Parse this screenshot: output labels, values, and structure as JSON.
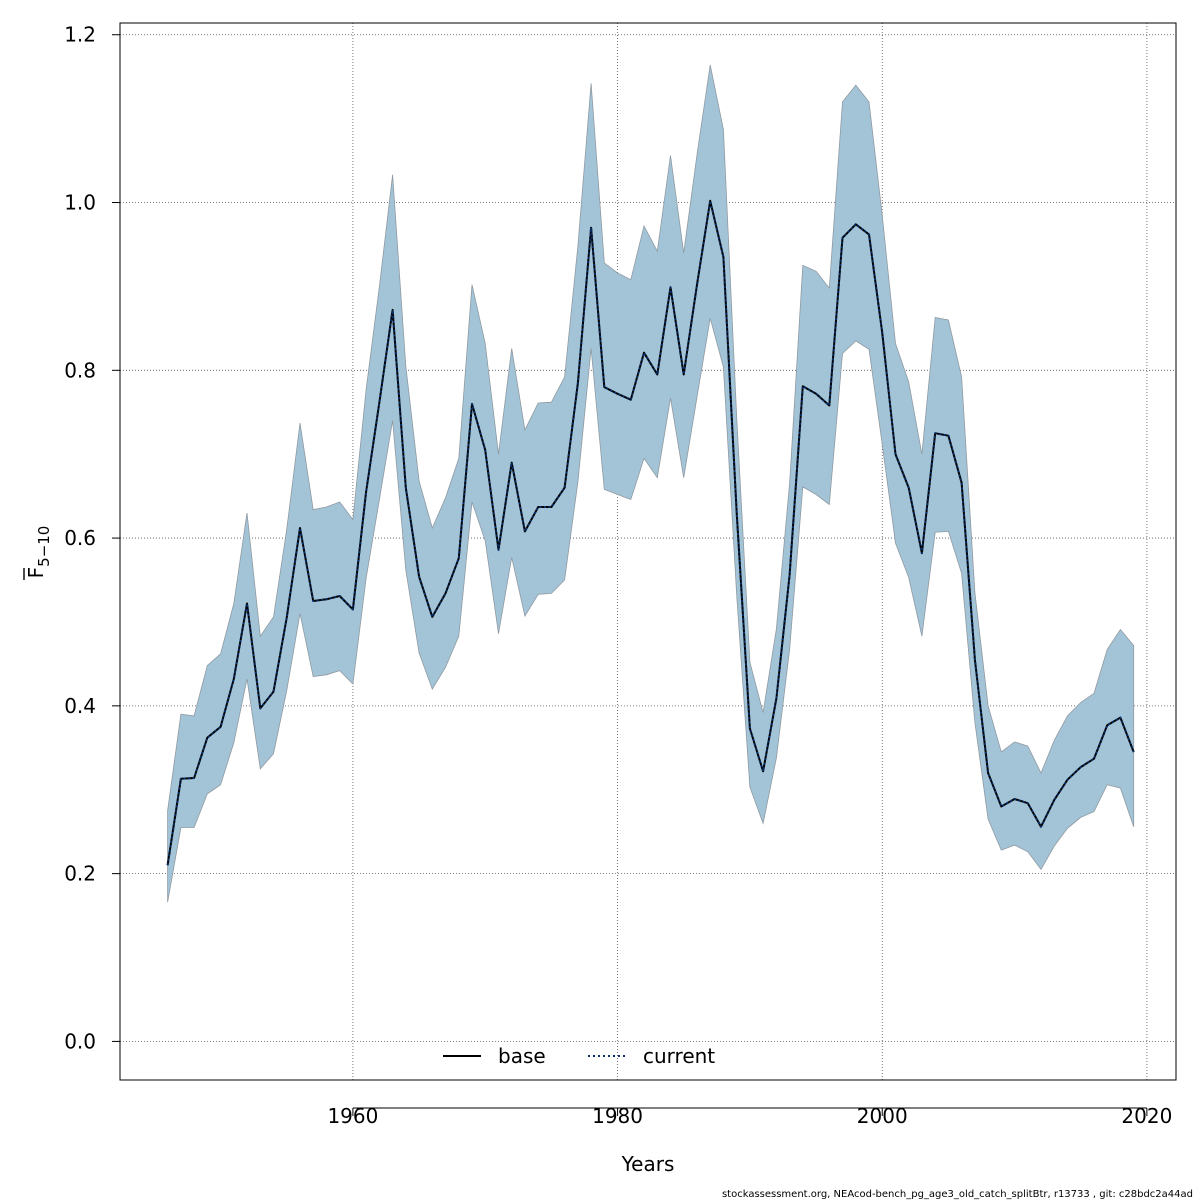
{
  "chart_data": {
    "type": "line",
    "xlabel": "Years",
    "ylabel": "F",
    "ylabel_subscript": "5−10",
    "xlim": [
      1942.4,
      2022.2
    ],
    "ylim": [
      -0.046,
      1.214
    ],
    "x_ticks": [
      1960,
      1980,
      2000,
      2020
    ],
    "y_ticks": [
      0.0,
      0.2,
      0.4,
      0.6,
      0.8,
      1.0,
      1.2
    ],
    "y_tick_labels": [
      "0.0",
      "0.2",
      "0.4",
      "0.6",
      "0.8",
      "1.0",
      "1.2"
    ],
    "grid": true,
    "legend_position": "bottom",
    "band_color": "#a3c4d6",
    "band_edge_color": "#8f9aa3",
    "x": [
      1946,
      1947,
      1948,
      1949,
      1950,
      1951,
      1952,
      1953,
      1954,
      1955,
      1956,
      1957,
      1958,
      1959,
      1960,
      1961,
      1962,
      1963,
      1964,
      1965,
      1966,
      1967,
      1968,
      1969,
      1970,
      1971,
      1972,
      1973,
      1974,
      1975,
      1976,
      1977,
      1978,
      1979,
      1980,
      1981,
      1982,
      1983,
      1984,
      1985,
      1986,
      1987,
      1988,
      1989,
      1990,
      1991,
      1992,
      1993,
      1994,
      1995,
      1996,
      1997,
      1998,
      1999,
      2000,
      2001,
      2002,
      2003,
      2004,
      2005,
      2006,
      2007,
      2008,
      2009,
      2010,
      2011,
      2012,
      2013,
      2014,
      2015,
      2016,
      2017,
      2018,
      2019
    ],
    "series": [
      {
        "name": "base",
        "color": "#000000",
        "dash": "solid",
        "values": [
          0.21,
          0.313,
          0.314,
          0.362,
          0.375,
          0.432,
          0.522,
          0.397,
          0.417,
          0.505,
          0.612,
          0.525,
          0.527,
          0.531,
          0.515,
          0.655,
          0.762,
          0.872,
          0.66,
          0.554,
          0.506,
          0.534,
          0.576,
          0.76,
          0.705,
          0.586,
          0.69,
          0.608,
          0.637,
          0.637,
          0.66,
          0.785,
          0.97,
          0.78,
          0.772,
          0.765,
          0.821,
          0.795,
          0.899,
          0.795,
          0.902,
          1.002,
          0.935,
          0.63,
          0.373,
          0.322,
          0.409,
          0.556,
          0.781,
          0.772,
          0.758,
          0.958,
          0.974,
          0.962,
          0.845,
          0.7,
          0.66,
          0.582,
          0.725,
          0.722,
          0.666,
          0.455,
          0.32,
          0.28,
          0.289,
          0.284,
          0.256,
          0.288,
          0.312,
          0.327,
          0.337,
          0.377,
          0.386,
          0.345
        ]
      },
      {
        "name": "current",
        "color": "#08306b",
        "dash": "dotted",
        "values": [
          0.21,
          0.313,
          0.314,
          0.362,
          0.375,
          0.432,
          0.522,
          0.397,
          0.417,
          0.505,
          0.612,
          0.525,
          0.527,
          0.531,
          0.515,
          0.655,
          0.762,
          0.872,
          0.66,
          0.554,
          0.506,
          0.534,
          0.576,
          0.76,
          0.705,
          0.586,
          0.69,
          0.608,
          0.637,
          0.637,
          0.66,
          0.785,
          0.97,
          0.78,
          0.772,
          0.765,
          0.821,
          0.795,
          0.899,
          0.795,
          0.902,
          1.002,
          0.935,
          0.63,
          0.373,
          0.322,
          0.409,
          0.556,
          0.781,
          0.772,
          0.758,
          0.958,
          0.974,
          0.962,
          0.845,
          0.7,
          0.66,
          0.582,
          0.725,
          0.722,
          0.666,
          0.455,
          0.32,
          0.28,
          0.289,
          0.284,
          0.256,
          0.288,
          0.312,
          0.327,
          0.337,
          0.377,
          0.386,
          0.345
        ]
      }
    ],
    "band_upper": [
      0.275,
      0.39,
      0.388,
      0.448,
      0.462,
      0.522,
      0.63,
      0.483,
      0.506,
      0.61,
      0.737,
      0.634,
      0.637,
      0.643,
      0.622,
      0.777,
      0.9,
      1.033,
      0.805,
      0.668,
      0.612,
      0.648,
      0.695,
      0.902,
      0.832,
      0.7,
      0.826,
      0.729,
      0.761,
      0.762,
      0.792,
      0.948,
      1.142,
      0.928,
      0.916,
      0.908,
      0.972,
      0.942,
      1.056,
      0.94,
      1.057,
      1.164,
      1.087,
      0.744,
      0.452,
      0.392,
      0.492,
      0.665,
      0.925,
      0.918,
      0.898,
      1.12,
      1.14,
      1.12,
      0.985,
      0.832,
      0.786,
      0.7,
      0.863,
      0.86,
      0.792,
      0.535,
      0.4,
      0.345,
      0.357,
      0.352,
      0.32,
      0.359,
      0.388,
      0.404,
      0.415,
      0.467,
      0.491,
      0.472
    ],
    "band_lower": [
      0.166,
      0.255,
      0.255,
      0.295,
      0.306,
      0.356,
      0.432,
      0.325,
      0.343,
      0.418,
      0.51,
      0.435,
      0.437,
      0.442,
      0.426,
      0.552,
      0.646,
      0.74,
      0.562,
      0.463,
      0.42,
      0.446,
      0.483,
      0.643,
      0.597,
      0.486,
      0.577,
      0.507,
      0.533,
      0.534,
      0.55,
      0.667,
      0.826,
      0.658,
      0.652,
      0.646,
      0.695,
      0.672,
      0.767,
      0.672,
      0.768,
      0.862,
      0.804,
      0.532,
      0.303,
      0.26,
      0.338,
      0.467,
      0.661,
      0.652,
      0.64,
      0.82,
      0.835,
      0.825,
      0.712,
      0.594,
      0.553,
      0.483,
      0.607,
      0.608,
      0.558,
      0.38,
      0.265,
      0.228,
      0.234,
      0.226,
      0.205,
      0.233,
      0.254,
      0.267,
      0.274,
      0.306,
      0.302,
      0.256
    ]
  },
  "footer": "stockassessment.org, NEAcod-bench_pg_age3_old_catch_splitBtr, r13733 , git: c28bdc2a44ad"
}
